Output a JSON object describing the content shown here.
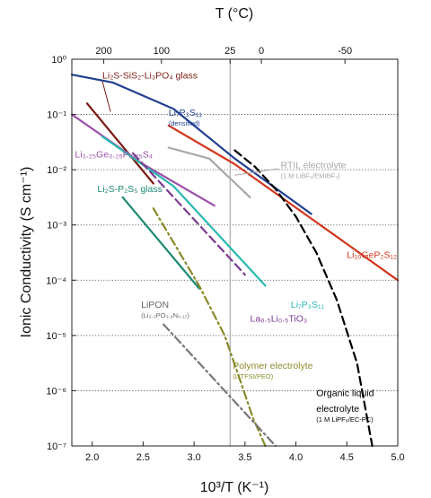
{
  "chart_data": {
    "type": "line",
    "xlabel": "10³/T (K⁻¹)",
    "ylabel": "Ionic Conductivity (S cm⁻¹)",
    "top_axis_label": "T (°C)",
    "xlim": [
      1.8,
      5.0
    ],
    "ylim_log10": [
      -7,
      0
    ],
    "y_scale": "log",
    "x_ticks": [
      "2.0",
      "2.5",
      "3.0",
      "3.5",
      "4.0",
      "4.5",
      "5.0"
    ],
    "y_ticks": [
      "10⁰",
      "10⁻¹",
      "10⁻²",
      "10⁻³",
      "10⁻⁴",
      "10⁻⁵",
      "10⁻⁶",
      "10⁻⁷"
    ],
    "top_ticks": [
      {
        "label": "200",
        "celsius": 200
      },
      {
        "label": "100",
        "celsius": 100
      },
      {
        "label": "25",
        "celsius": 25
      },
      {
        "label": "0",
        "celsius": 0
      },
      {
        "label": "-50",
        "celsius": -50
      }
    ],
    "grid": "horizontal dotted",
    "reference_line_celsius": 25,
    "series": [
      {
        "name": "Li₂S-SiS₂-Li₃PO₄ glass",
        "color": "#7a1c12",
        "dash": "solid",
        "x": [
          1.95,
          2.6
        ],
        "y": [
          -0.8,
          -2.25
        ]
      },
      {
        "name": "Li₇P₃S₁₁ (densified)",
        "color": "#1f3f8f",
        "dash": "solid",
        "x": [
          1.8,
          2.2,
          2.8,
          3.4,
          4.15
        ],
        "y": [
          -0.28,
          -0.42,
          -0.9,
          -1.8,
          -2.8
        ]
      },
      {
        "name": "Li₃.₂₅Ge₀.₂₅P₀.₇₅S₄",
        "color": "#9b4fa8",
        "dash": "solid",
        "x": [
          1.8,
          2.5,
          3.2
        ],
        "y": [
          -1.0,
          -1.9,
          -2.65
        ]
      },
      {
        "name": "RTIL electrolyte (1 M LiBF₄/EMIBF₄)",
        "color": "#a8a8a8",
        "dash": "solid",
        "x": [
          2.75,
          3.15,
          3.55
        ],
        "y": [
          -1.6,
          -1.8,
          -2.5
        ]
      },
      {
        "name": "Li₁₀GeP₂S₁₂",
        "color": "#d2341b",
        "dash": "solid",
        "x": [
          2.75,
          3.4,
          4.2,
          5.0
        ],
        "y": [
          -1.2,
          -1.9,
          -2.95,
          -4.0
        ]
      },
      {
        "name": "Li₂S-P₂S₅ glass",
        "color": "#1d8a72",
        "dash": "solid",
        "x": [
          2.3,
          3.05
        ],
        "y": [
          -2.5,
          -4.15
        ]
      },
      {
        "name": "Li₇P₃S₁₁",
        "color": "#2ab8b0",
        "dash": "solid",
        "x": [
          2.1,
          2.8,
          3.7
        ],
        "y": [
          -1.4,
          -2.3,
          -4.1
        ]
      },
      {
        "name": "La₀.₅Li₀.₅TiO₃",
        "color": "#7a3b8f",
        "dash": "dashed",
        "x": [
          2.4,
          3.5
        ],
        "y": [
          -1.7,
          -3.9
        ]
      },
      {
        "name": "Polymer electrolyte (LiTFSI/PEO)",
        "color": "#8a8a2a",
        "dash": "dashdot",
        "x": [
          2.6,
          3.05,
          3.3,
          3.45,
          3.58,
          3.7
        ],
        "y": [
          -2.7,
          -4.1,
          -5.0,
          -5.8,
          -6.5,
          -7.0
        ]
      },
      {
        "name": "LiPON (Li₃.₃PO₃.₉N₀.₁₇)",
        "color": "#777777",
        "dash": "dashdot",
        "x": [
          2.7,
          3.8
        ],
        "y": [
          -4.8,
          -7.0
        ]
      },
      {
        "name": "Organic liquid electrolyte (1 M LiPF₆/EC-PC)",
        "color": "#000000",
        "dash": "dashed",
        "x": [
          3.4,
          3.6,
          3.8,
          4.0,
          4.2,
          4.4,
          4.6,
          4.75
        ],
        "y": [
          -1.65,
          -1.95,
          -2.35,
          -2.85,
          -3.5,
          -4.35,
          -5.5,
          -7.0
        ]
      }
    ],
    "annotations": [
      {
        "text": "Li₂S-SiS₂-Li₃PO₄ glass",
        "sub": "",
        "color": "#7a1c12",
        "x": 2.1,
        "y": -0.35
      },
      {
        "text": "Li₇P₃S₁₁",
        "sub": "(densified)",
        "color": "#1f3f8f",
        "x": 2.75,
        "y": -1.02
      },
      {
        "text": "Li₃.₂₅Ge₀.₂₅P₀.₇₅S₄",
        "sub": "",
        "color": "#9b4fa8",
        "x": 1.83,
        "y": -1.78
      },
      {
        "text": "RTIL electrolyte",
        "sub": "(1 M LiBF₄/EMIBF₄)",
        "color": "#a8a8a8",
        "x": 3.85,
        "y": -1.97
      },
      {
        "text": "Li₁₀GeP₂S₁₂",
        "sub": "",
        "color": "#d2341b",
        "x": 4.5,
        "y": -3.6
      },
      {
        "text": "Li₂S-P₂S₅ glass",
        "sub": "",
        "color": "#1d8a72",
        "x": 2.05,
        "y": -2.4
      },
      {
        "text": "Li₇P₃S₁₁",
        "sub": "",
        "color": "#2ab8b0",
        "x": 3.95,
        "y": -4.5
      },
      {
        "text": "La₀.₅Li₀.₅TiO₃",
        "sub": "",
        "color": "#7a3b8f",
        "x": 3.55,
        "y": -4.75
      },
      {
        "text": "LiPON",
        "sub": "(Li₃.₃PO₃.₉N₀.₁₇)",
        "color": "#666666",
        "x": 2.48,
        "y": -4.5
      },
      {
        "text": "Polymer electrolyte",
        "sub": "(LiTFSI/PEO)",
        "color": "#8a8a2a",
        "x": 3.38,
        "y": -5.6
      },
      {
        "text": "Organic liquid",
        "sub": "",
        "color": "#000000",
        "x": 4.2,
        "y": -6.1
      },
      {
        "text": "electrolyte",
        "sub": "(1 M LiPF₆/EC-PC)",
        "color": "#000000",
        "x": 4.2,
        "y": -6.38
      }
    ]
  }
}
